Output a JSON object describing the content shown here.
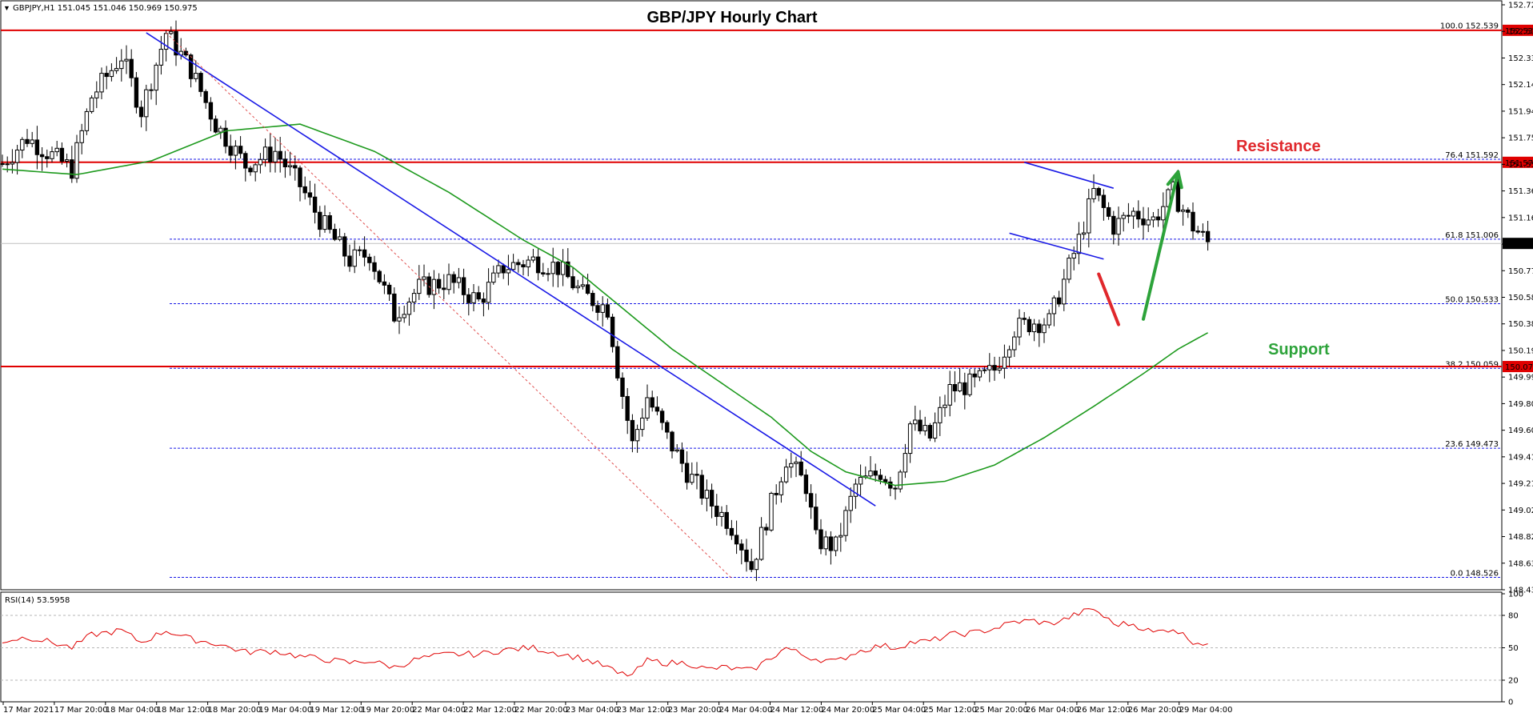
{
  "header": {
    "symbol_info": "GBPJPY,H1  151.045 151.046 150.969 150.975",
    "title": "GBP/JPY Hourly Chart"
  },
  "annotations": {
    "resistance": "Resistance",
    "support": "Support"
  },
  "colors": {
    "candle": "#000000",
    "ma": "#1e9a1e",
    "trendline": "#1a1ae6",
    "horizontal_level": "#e00000",
    "fib": "#1a1ae6",
    "rsi": "#e00000",
    "resistance_text": "#e0282c",
    "support_text": "#2da33a",
    "arrow_up": "#2da33a",
    "arrow_down": "#e0282c"
  },
  "chart_data": [
    {
      "type": "candlestick",
      "symbol": "GBPJPY",
      "timeframe": "H1",
      "ylim": [
        148.435,
        152.725
      ],
      "y_ticks": [
        "152.725",
        "152.530",
        "152.335",
        "152.140",
        "151.945",
        "151.750",
        "151.555",
        "151.360",
        "151.165",
        "150.970",
        "150.775",
        "150.580",
        "150.385",
        "150.190",
        "149.995",
        "149.800",
        "149.605",
        "149.410",
        "149.215",
        "149.020",
        "148.825",
        "148.630",
        "148.435"
      ],
      "x_ticks": [
        "17 Mar 2021",
        "17 Mar 20:00",
        "18 Mar 04:00",
        "18 Mar 12:00",
        "18 Mar 20:00",
        "19 Mar 04:00",
        "19 Mar 12:00",
        "19 Mar 20:00",
        "22 Mar 04:00",
        "22 Mar 12:00",
        "22 Mar 20:00",
        "23 Mar 04:00",
        "23 Mar 12:00",
        "23 Mar 20:00",
        "24 Mar 04:00",
        "24 Mar 12:00",
        "24 Mar 20:00",
        "25 Mar 04:00",
        "25 Mar 12:00",
        "25 Mar 20:00",
        "26 Mar 04:00",
        "26 Mar 12:00",
        "26 Mar 20:00",
        "29 Mar 04:00"
      ],
      "close_path": [
        [
          0,
          151.56
        ],
        [
          5,
          151.75
        ],
        [
          10,
          151.62
        ],
        [
          14,
          151.52
        ],
        [
          18,
          152.05
        ],
        [
          24,
          152.35
        ],
        [
          28,
          151.95
        ],
        [
          33,
          152.52
        ],
        [
          38,
          152.25
        ],
        [
          43,
          151.85
        ],
        [
          49,
          151.55
        ],
        [
          55,
          151.65
        ],
        [
          60,
          151.4
        ],
        [
          64,
          151.15
        ],
        [
          70,
          150.85
        ],
        [
          74,
          150.9
        ],
        [
          79,
          150.45
        ],
        [
          84,
          150.65
        ],
        [
          90,
          150.7
        ],
        [
          96,
          150.55
        ],
        [
          101,
          150.8
        ],
        [
          107,
          150.85
        ],
        [
          112,
          150.8
        ],
        [
          117,
          150.6
        ],
        [
          122,
          150.5
        ],
        [
          124,
          150.05
        ],
        [
          127,
          149.5
        ],
        [
          130,
          149.85
        ],
        [
          134,
          149.55
        ],
        [
          138,
          149.3
        ],
        [
          142,
          149.1
        ],
        [
          146,
          148.95
        ],
        [
          148,
          148.85
        ],
        [
          151,
          148.6
        ],
        [
          154,
          148.95
        ],
        [
          158,
          149.4
        ],
        [
          162,
          149.2
        ],
        [
          164,
          148.8
        ],
        [
          168,
          148.75
        ],
        [
          172,
          149.2
        ],
        [
          177,
          149.3
        ],
        [
          180,
          149.2
        ],
        [
          183,
          149.65
        ],
        [
          187,
          149.55
        ],
        [
          191,
          149.9
        ],
        [
          196,
          149.95
        ],
        [
          200,
          150.05
        ],
        [
          204,
          150.35
        ],
        [
          208,
          150.4
        ],
        [
          211,
          150.4
        ],
        [
          214,
          150.7
        ],
        [
          217,
          151.0
        ],
        [
          220,
          151.35
        ],
        [
          224,
          151.1
        ],
        [
          228,
          151.2
        ],
        [
          232,
          151.15
        ],
        [
          236,
          151.35
        ],
        [
          240,
          151.1
        ],
        [
          243,
          150.98
        ]
      ],
      "moving_average_path": [
        [
          0,
          151.52
        ],
        [
          15,
          151.48
        ],
        [
          30,
          151.58
        ],
        [
          45,
          151.8
        ],
        [
          60,
          151.85
        ],
        [
          75,
          151.65
        ],
        [
          90,
          151.35
        ],
        [
          105,
          151.0
        ],
        [
          115,
          150.8
        ],
        [
          125,
          150.5
        ],
        [
          135,
          150.2
        ],
        [
          145,
          149.95
        ],
        [
          155,
          149.7
        ],
        [
          163,
          149.45
        ],
        [
          170,
          149.3
        ],
        [
          180,
          149.2
        ],
        [
          190,
          149.23
        ],
        [
          200,
          149.35
        ],
        [
          210,
          149.55
        ],
        [
          220,
          149.78
        ],
        [
          230,
          150.02
        ],
        [
          237,
          150.2
        ],
        [
          243,
          150.32
        ]
      ],
      "horizontal_levels": [
        {
          "value": 152.538,
          "label": "152.538"
        },
        {
          "value": 151.57,
          "label": "151.570"
        },
        {
          "value": 150.072,
          "label": "150.072"
        }
      ],
      "last_price": {
        "value": 150.975,
        "label": "150.975"
      },
      "fibonacci_levels": [
        {
          "value": 152.539,
          "label": "100.0 152.539"
        },
        {
          "value": 151.592,
          "label": "76.4 151.592"
        },
        {
          "value": 151.006,
          "label": "61.8 151.006"
        },
        {
          "value": 150.533,
          "label": "50.0 150.533"
        },
        {
          "value": 150.059,
          "label": "38.2 150.059"
        },
        {
          "value": 149.473,
          "label": "23.6 149.473"
        },
        {
          "value": 148.526,
          "label": "0.0 148.526"
        }
      ],
      "trendlines": [
        {
          "name": "bearish trend line",
          "from": [
            29,
            152.52
          ],
          "to": [
            176,
            149.05
          ]
        },
        {
          "name": "fib range",
          "from": [
            33,
            152.52
          ],
          "to": [
            147,
            148.52
          ]
        },
        {
          "name": "channel upper",
          "from": [
            206,
            151.57
          ],
          "to": [
            224,
            151.38
          ]
        },
        {
          "name": "channel lower",
          "from": [
            203,
            151.05
          ],
          "to": [
            222,
            150.86
          ]
        }
      ],
      "forecast_arrows": [
        {
          "name": "pullback",
          "from": [
            221,
            150.75
          ],
          "to": [
            225,
            150.38
          ]
        },
        {
          "name": "rally",
          "from": [
            230,
            150.42
          ],
          "to": [
            237,
            151.5
          ]
        }
      ]
    },
    {
      "type": "line",
      "name": "RSI(14)",
      "label": "RSI(14) 53.5958",
      "ylim": [
        0,
        100
      ],
      "y_ticks": [
        100,
        80,
        50,
        20,
        0
      ],
      "levels": [
        80,
        50,
        20
      ],
      "values": [
        [
          0,
          56
        ],
        [
          5,
          60
        ],
        [
          10,
          55
        ],
        [
          14,
          50
        ],
        [
          18,
          62
        ],
        [
          24,
          66
        ],
        [
          28,
          55
        ],
        [
          33,
          66
        ],
        [
          38,
          58
        ],
        [
          43,
          54
        ],
        [
          49,
          46
        ],
        [
          55,
          47
        ],
        [
          60,
          42
        ],
        [
          64,
          40
        ],
        [
          70,
          36
        ],
        [
          74,
          38
        ],
        [
          79,
          32
        ],
        [
          84,
          40
        ],
        [
          90,
          44
        ],
        [
          96,
          44
        ],
        [
          101,
          48
        ],
        [
          107,
          50
        ],
        [
          112,
          45
        ],
        [
          117,
          40
        ],
        [
          122,
          32
        ],
        [
          124,
          26
        ],
        [
          127,
          25
        ],
        [
          130,
          38
        ],
        [
          134,
          36
        ],
        [
          138,
          36
        ],
        [
          142,
          30
        ],
        [
          146,
          32
        ],
        [
          148,
          30
        ],
        [
          151,
          29
        ],
        [
          154,
          38
        ],
        [
          158,
          50
        ],
        [
          162,
          42
        ],
        [
          164,
          40
        ],
        [
          168,
          37
        ],
        [
          172,
          46
        ],
        [
          177,
          52
        ],
        [
          180,
          50
        ],
        [
          183,
          55
        ],
        [
          187,
          56
        ],
        [
          191,
          62
        ],
        [
          196,
          64
        ],
        [
          200,
          68
        ],
        [
          204,
          74
        ],
        [
          208,
          75
        ],
        [
          211,
          72
        ],
        [
          214,
          76
        ],
        [
          217,
          82
        ],
        [
          220,
          86
        ],
        [
          224,
          72
        ],
        [
          228,
          72
        ],
        [
          232,
          64
        ],
        [
          236,
          68
        ],
        [
          240,
          56
        ],
        [
          243,
          53.6
        ]
      ]
    }
  ]
}
